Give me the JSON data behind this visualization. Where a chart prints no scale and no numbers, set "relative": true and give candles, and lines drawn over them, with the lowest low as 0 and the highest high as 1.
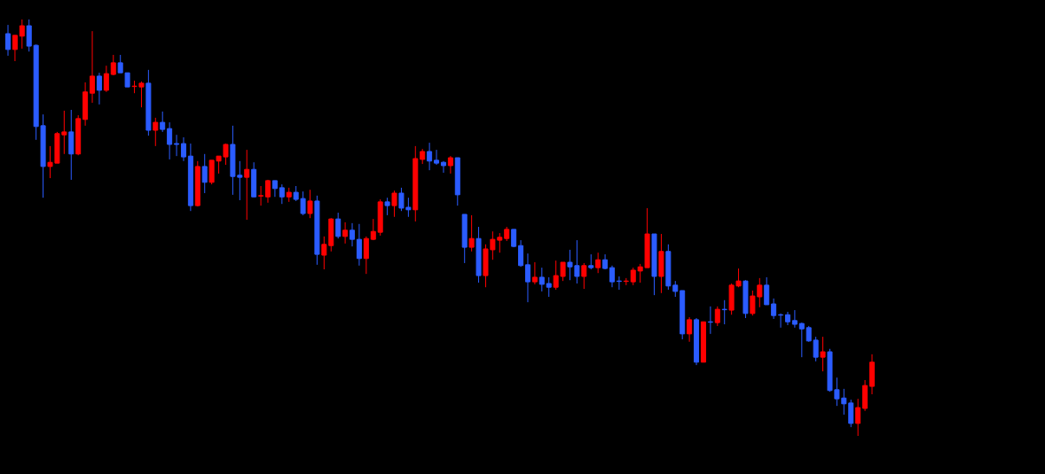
{
  "chart_data": {
    "type": "candlestick",
    "relative": true,
    "categories": [
      null,
      null,
      null,
      null,
      null,
      null,
      null,
      null,
      null,
      null,
      null,
      null,
      null,
      null,
      null,
      null,
      null,
      null,
      null,
      null,
      null,
      null,
      null,
      null,
      null,
      null,
      null,
      null,
      null,
      null,
      null,
      null,
      null,
      null,
      null,
      null,
      null,
      null,
      null,
      null,
      null,
      null,
      null,
      null,
      null,
      null,
      null,
      null,
      null,
      null,
      null,
      null,
      null,
      null,
      null,
      null,
      null,
      null,
      null,
      null,
      null,
      null,
      null,
      null,
      null,
      null,
      null,
      null,
      null,
      null,
      null,
      null,
      null,
      null,
      null,
      null,
      null,
      null,
      null,
      null,
      null,
      null,
      null,
      null,
      null,
      null,
      null,
      null,
      null,
      null,
      null,
      null,
      null,
      null,
      null,
      null,
      null,
      null,
      null,
      null,
      null,
      null,
      null,
      null,
      null,
      null,
      null,
      null,
      null,
      null,
      null,
      null,
      null,
      null,
      null,
      null,
      null,
      null,
      null,
      null,
      null,
      null,
      null,
      null
    ],
    "ohlc": [
      [
        0.966,
        0.987,
        0.913,
        0.928
      ],
      [
        0.928,
        0.962,
        0.9,
        0.962
      ],
      [
        0.96,
        1.0,
        0.93,
        0.985
      ],
      [
        0.985,
        1.0,
        0.923,
        0.936
      ],
      [
        0.938,
        0.94,
        0.711,
        0.743
      ],
      [
        0.745,
        0.772,
        0.572,
        0.647
      ],
      [
        0.647,
        0.696,
        0.619,
        0.657
      ],
      [
        0.655,
        0.73,
        0.655,
        0.726
      ],
      [
        0.723,
        0.781,
        0.677,
        0.73
      ],
      [
        0.73,
        0.783,
        0.615,
        0.677
      ],
      [
        0.677,
        0.77,
        0.674,
        0.762
      ],
      [
        0.76,
        0.849,
        0.745,
        0.826
      ],
      [
        0.823,
        0.972,
        0.8,
        0.864
      ],
      [
        0.864,
        0.872,
        0.796,
        0.83
      ],
      [
        0.83,
        0.889,
        0.826,
        0.87
      ],
      [
        0.868,
        0.915,
        0.866,
        0.896
      ],
      [
        0.896,
        0.915,
        0.872,
        0.872
      ],
      [
        0.872,
        0.872,
        0.838,
        0.838
      ],
      [
        0.839,
        0.853,
        0.823,
        0.84
      ],
      [
        0.838,
        0.851,
        0.789,
        0.847
      ],
      [
        0.847,
        0.879,
        0.721,
        0.734
      ],
      [
        0.734,
        0.764,
        0.696,
        0.753
      ],
      [
        0.753,
        0.779,
        0.73,
        0.736
      ],
      [
        0.738,
        0.753,
        0.664,
        0.7
      ],
      [
        0.702,
        0.723,
        0.672,
        0.7
      ],
      [
        0.702,
        0.717,
        0.66,
        0.67
      ],
      [
        0.672,
        0.702,
        0.54,
        0.553
      ],
      [
        0.553,
        0.66,
        0.551,
        0.647
      ],
      [
        0.647,
        0.677,
        0.583,
        0.609
      ],
      [
        0.609,
        0.662,
        0.604,
        0.662
      ],
      [
        0.66,
        0.672,
        0.63,
        0.672
      ],
      [
        0.67,
        0.702,
        0.651,
        0.7
      ],
      [
        0.7,
        0.745,
        0.579,
        0.623
      ],
      [
        0.626,
        0.66,
        0.566,
        0.621
      ],
      [
        0.621,
        0.687,
        0.519,
        0.64
      ],
      [
        0.64,
        0.657,
        0.574,
        0.574
      ],
      [
        0.576,
        0.6,
        0.553,
        0.577
      ],
      [
        0.574,
        0.615,
        0.56,
        0.613
      ],
      [
        0.613,
        0.613,
        0.574,
        0.594
      ],
      [
        0.596,
        0.604,
        0.557,
        0.574
      ],
      [
        0.574,
        0.596,
        0.562,
        0.585
      ],
      [
        0.585,
        0.6,
        0.564,
        0.568
      ],
      [
        0.57,
        0.587,
        0.53,
        0.534
      ],
      [
        0.534,
        0.591,
        0.523,
        0.564
      ],
      [
        0.564,
        0.577,
        0.411,
        0.436
      ],
      [
        0.434,
        0.479,
        0.4,
        0.46
      ],
      [
        0.457,
        0.523,
        0.443,
        0.521
      ],
      [
        0.521,
        0.536,
        0.474,
        0.479
      ],
      [
        0.479,
        0.513,
        0.462,
        0.494
      ],
      [
        0.494,
        0.511,
        0.455,
        0.472
      ],
      [
        0.472,
        0.509,
        0.409,
        0.426
      ],
      [
        0.426,
        0.479,
        0.389,
        0.474
      ],
      [
        0.472,
        0.521,
        0.47,
        0.491
      ],
      [
        0.489,
        0.568,
        0.481,
        0.562
      ],
      [
        0.562,
        0.572,
        0.53,
        0.553
      ],
      [
        0.553,
        0.589,
        0.526,
        0.583
      ],
      [
        0.583,
        0.596,
        0.54,
        0.547
      ],
      [
        0.549,
        0.572,
        0.526,
        0.543
      ],
      [
        0.543,
        0.696,
        0.515,
        0.666
      ],
      [
        0.664,
        0.689,
        0.653,
        0.683
      ],
      [
        0.683,
        0.704,
        0.638,
        0.66
      ],
      [
        0.662,
        0.687,
        0.651,
        0.655
      ],
      [
        0.657,
        0.66,
        0.632,
        0.649
      ],
      [
        0.649,
        0.672,
        0.63,
        0.668
      ],
      [
        0.668,
        0.668,
        0.553,
        0.579
      ],
      [
        0.532,
        0.532,
        0.415,
        0.453
      ],
      [
        0.453,
        0.53,
        0.443,
        0.474
      ],
      [
        0.474,
        0.502,
        0.368,
        0.385
      ],
      [
        0.385,
        0.46,
        0.357,
        0.449
      ],
      [
        0.447,
        0.491,
        0.423,
        0.472
      ],
      [
        0.47,
        0.487,
        0.44,
        0.477
      ],
      [
        0.474,
        0.502,
        0.468,
        0.496
      ],
      [
        0.496,
        0.496,
        0.453,
        0.455
      ],
      [
        0.457,
        0.47,
        0.406,
        0.409
      ],
      [
        0.411,
        0.438,
        0.321,
        0.37
      ],
      [
        0.37,
        0.417,
        0.364,
        0.381
      ],
      [
        0.381,
        0.404,
        0.347,
        0.364
      ],
      [
        0.366,
        0.381,
        0.334,
        0.357
      ],
      [
        0.357,
        0.421,
        0.351,
        0.385
      ],
      [
        0.383,
        0.417,
        0.372,
        0.417
      ],
      [
        0.417,
        0.447,
        0.374,
        0.406
      ],
      [
        0.409,
        0.47,
        0.366,
        0.383
      ],
      [
        0.383,
        0.415,
        0.353,
        0.409
      ],
      [
        0.409,
        0.436,
        0.4,
        0.404
      ],
      [
        0.404,
        0.44,
        0.391,
        0.423
      ],
      [
        0.423,
        0.436,
        0.4,
        0.402
      ],
      [
        0.404,
        0.409,
        0.357,
        0.37
      ],
      [
        0.372,
        0.383,
        0.351,
        0.371
      ],
      [
        0.371,
        0.379,
        0.362,
        0.372
      ],
      [
        0.37,
        0.404,
        0.362,
        0.398
      ],
      [
        0.396,
        0.413,
        0.368,
        0.406
      ],
      [
        0.404,
        0.547,
        0.404,
        0.485
      ],
      [
        0.485,
        0.485,
        0.338,
        0.383
      ],
      [
        0.383,
        0.485,
        0.343,
        0.443
      ],
      [
        0.443,
        0.46,
        0.351,
        0.36
      ],
      [
        0.362,
        0.372,
        0.334,
        0.347
      ],
      [
        0.349,
        0.349,
        0.232,
        0.245
      ],
      [
        0.245,
        0.285,
        0.226,
        0.279
      ],
      [
        0.279,
        0.283,
        0.17,
        0.177
      ],
      [
        0.177,
        0.274,
        0.177,
        0.274
      ],
      [
        0.274,
        0.311,
        0.245,
        0.273
      ],
      [
        0.272,
        0.311,
        0.264,
        0.304
      ],
      [
        0.304,
        0.326,
        0.268,
        0.303
      ],
      [
        0.302,
        0.366,
        0.291,
        0.362
      ],
      [
        0.36,
        0.402,
        0.357,
        0.372
      ],
      [
        0.372,
        0.374,
        0.283,
        0.294
      ],
      [
        0.294,
        0.349,
        0.289,
        0.336
      ],
      [
        0.334,
        0.379,
        0.309,
        0.362
      ],
      [
        0.362,
        0.381,
        0.315,
        0.315
      ],
      [
        0.317,
        0.33,
        0.281,
        0.289
      ],
      [
        0.291,
        0.294,
        0.26,
        0.29
      ],
      [
        0.291,
        0.298,
        0.266,
        0.274
      ],
      [
        0.277,
        0.302,
        0.26,
        0.268
      ],
      [
        0.27,
        0.272,
        0.189,
        0.257
      ],
      [
        0.26,
        0.264,
        0.226,
        0.228
      ],
      [
        0.23,
        0.238,
        0.179,
        0.189
      ],
      [
        0.189,
        0.238,
        0.155,
        0.202
      ],
      [
        0.202,
        0.209,
        0.106,
        0.109
      ],
      [
        0.111,
        0.14,
        0.072,
        0.089
      ],
      [
        0.091,
        0.113,
        0.051,
        0.077
      ],
      [
        0.079,
        0.087,
        0.021,
        0.03
      ],
      [
        0.03,
        0.089,
        0.0,
        0.068
      ],
      [
        0.066,
        0.134,
        0.06,
        0.121
      ],
      [
        0.119,
        0.196,
        0.1,
        0.177
      ]
    ],
    "colors": [
      "#2b5cff",
      "#ff0000",
      "#ff0000",
      "#2b5cff",
      "#2b5cff",
      "#2b5cff",
      "#ff0000",
      "#ff0000",
      "#ff0000",
      "#2b5cff",
      "#ff0000",
      "#ff0000",
      "#ff0000",
      "#2b5cff",
      "#ff0000",
      "#ff0000",
      "#2b5cff",
      "#2b5cff",
      "#ff0000",
      "#ff0000",
      "#2b5cff",
      "#ff0000",
      "#2b5cff",
      "#2b5cff",
      "#2b5cff",
      "#2b5cff",
      "#2b5cff",
      "#ff0000",
      "#2b5cff",
      "#ff0000",
      "#ff0000",
      "#ff0000",
      "#2b5cff",
      "#2b5cff",
      "#ff0000",
      "#2b5cff",
      "#ff0000",
      "#ff0000",
      "#2b5cff",
      "#2b5cff",
      "#ff0000",
      "#2b5cff",
      "#2b5cff",
      "#ff0000",
      "#2b5cff",
      "#ff0000",
      "#ff0000",
      "#2b5cff",
      "#ff0000",
      "#2b5cff",
      "#2b5cff",
      "#ff0000",
      "#ff0000",
      "#ff0000",
      "#2b5cff",
      "#ff0000",
      "#2b5cff",
      "#2b5cff",
      "#ff0000",
      "#ff0000",
      "#2b5cff",
      "#2b5cff",
      "#2b5cff",
      "#ff0000",
      "#2b5cff",
      "#2b5cff",
      "#ff0000",
      "#2b5cff",
      "#ff0000",
      "#ff0000",
      "#ff0000",
      "#ff0000",
      "#2b5cff",
      "#2b5cff",
      "#2b5cff",
      "#ff0000",
      "#2b5cff",
      "#2b5cff",
      "#ff0000",
      "#ff0000",
      "#2b5cff",
      "#2b5cff",
      "#ff0000",
      "#2b5cff",
      "#ff0000",
      "#2b5cff",
      "#2b5cff",
      "#2b5cff",
      "#ff0000",
      "#ff0000",
      "#ff0000",
      "#ff0000",
      "#2b5cff",
      "#ff0000",
      "#2b5cff",
      "#2b5cff",
      "#2b5cff",
      "#ff0000",
      "#2b5cff",
      "#ff0000",
      "#2b5cff",
      "#ff0000",
      "#2b5cff",
      "#ff0000",
      "#ff0000",
      "#2b5cff",
      "#ff0000",
      "#ff0000",
      "#2b5cff",
      "#2b5cff",
      "#2b5cff",
      "#2b5cff",
      "#2b5cff",
      "#2b5cff",
      "#2b5cff",
      "#2b5cff",
      "#ff0000",
      "#2b5cff",
      "#2b5cff",
      "#2b5cff",
      "#2b5cff",
      "#ff0000",
      "#ff0000",
      "#ff0000"
    ]
  }
}
